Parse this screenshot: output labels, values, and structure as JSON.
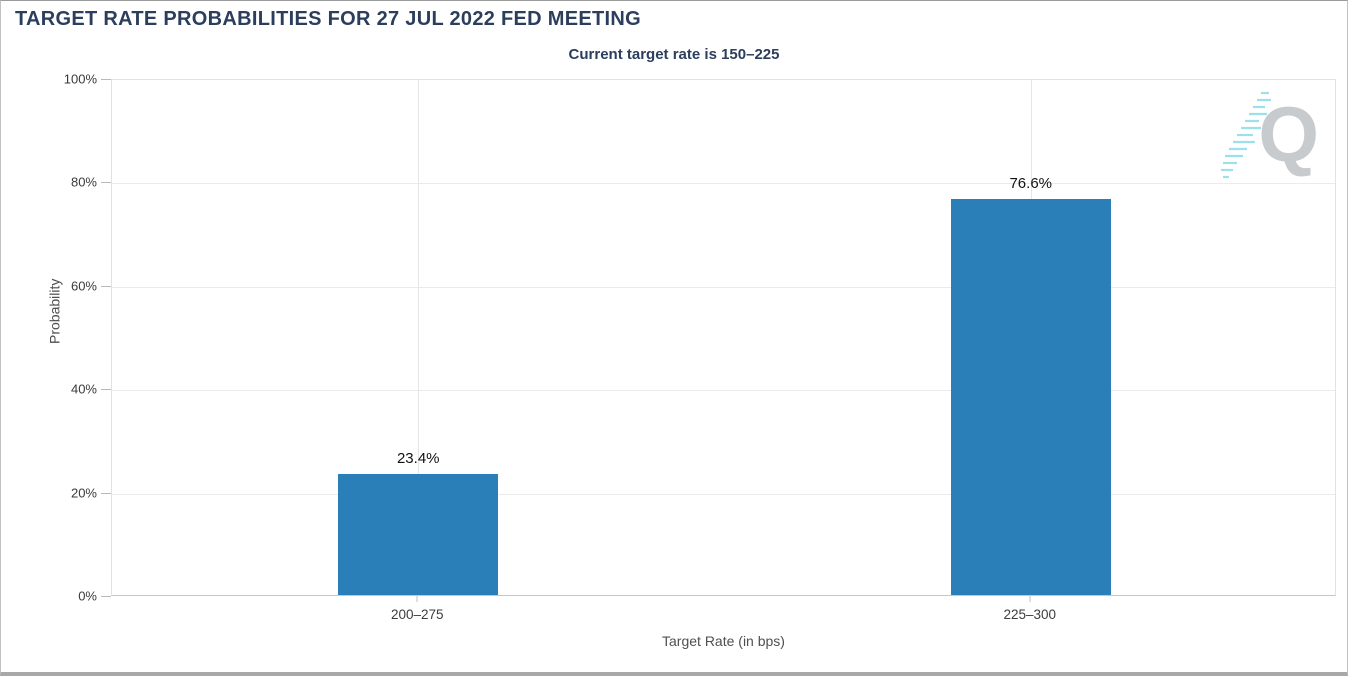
{
  "page": {
    "title": "TARGET RATE PROBABILITIES FOR 27 JUL 2022 FED MEETING",
    "subtitle": "Current target rate is 150–225"
  },
  "watermark": {
    "glyph": "Q"
  },
  "colors": {
    "bar": "#2b7fb9",
    "title_text": "#2c3e5d",
    "axis_text": "#4f4f4f",
    "tick_text": "#3a3a3a",
    "watermark_gray": "#c3c6c9",
    "watermark_cyan": "#8adbe8"
  },
  "chart_data": {
    "type": "bar",
    "title": "TARGET RATE PROBABILITIES FOR 27 JUL 2022 FED MEETING",
    "subtitle": "Current target rate is 150–225",
    "categories": [
      "200–275",
      "225–300"
    ],
    "values": [
      23.4,
      76.6
    ],
    "value_labels": [
      "23.4%",
      "76.6%"
    ],
    "xlabel": "Target Rate (in bps)",
    "ylabel": "Probability",
    "ylim": [
      0,
      100
    ],
    "yticks": [
      0,
      20,
      40,
      60,
      80,
      100
    ],
    "ytick_labels": [
      "0%",
      "20%",
      "40%",
      "60%",
      "80%",
      "100%"
    ],
    "grid": true,
    "legend": false,
    "bar_color": "#2b7fb9"
  }
}
